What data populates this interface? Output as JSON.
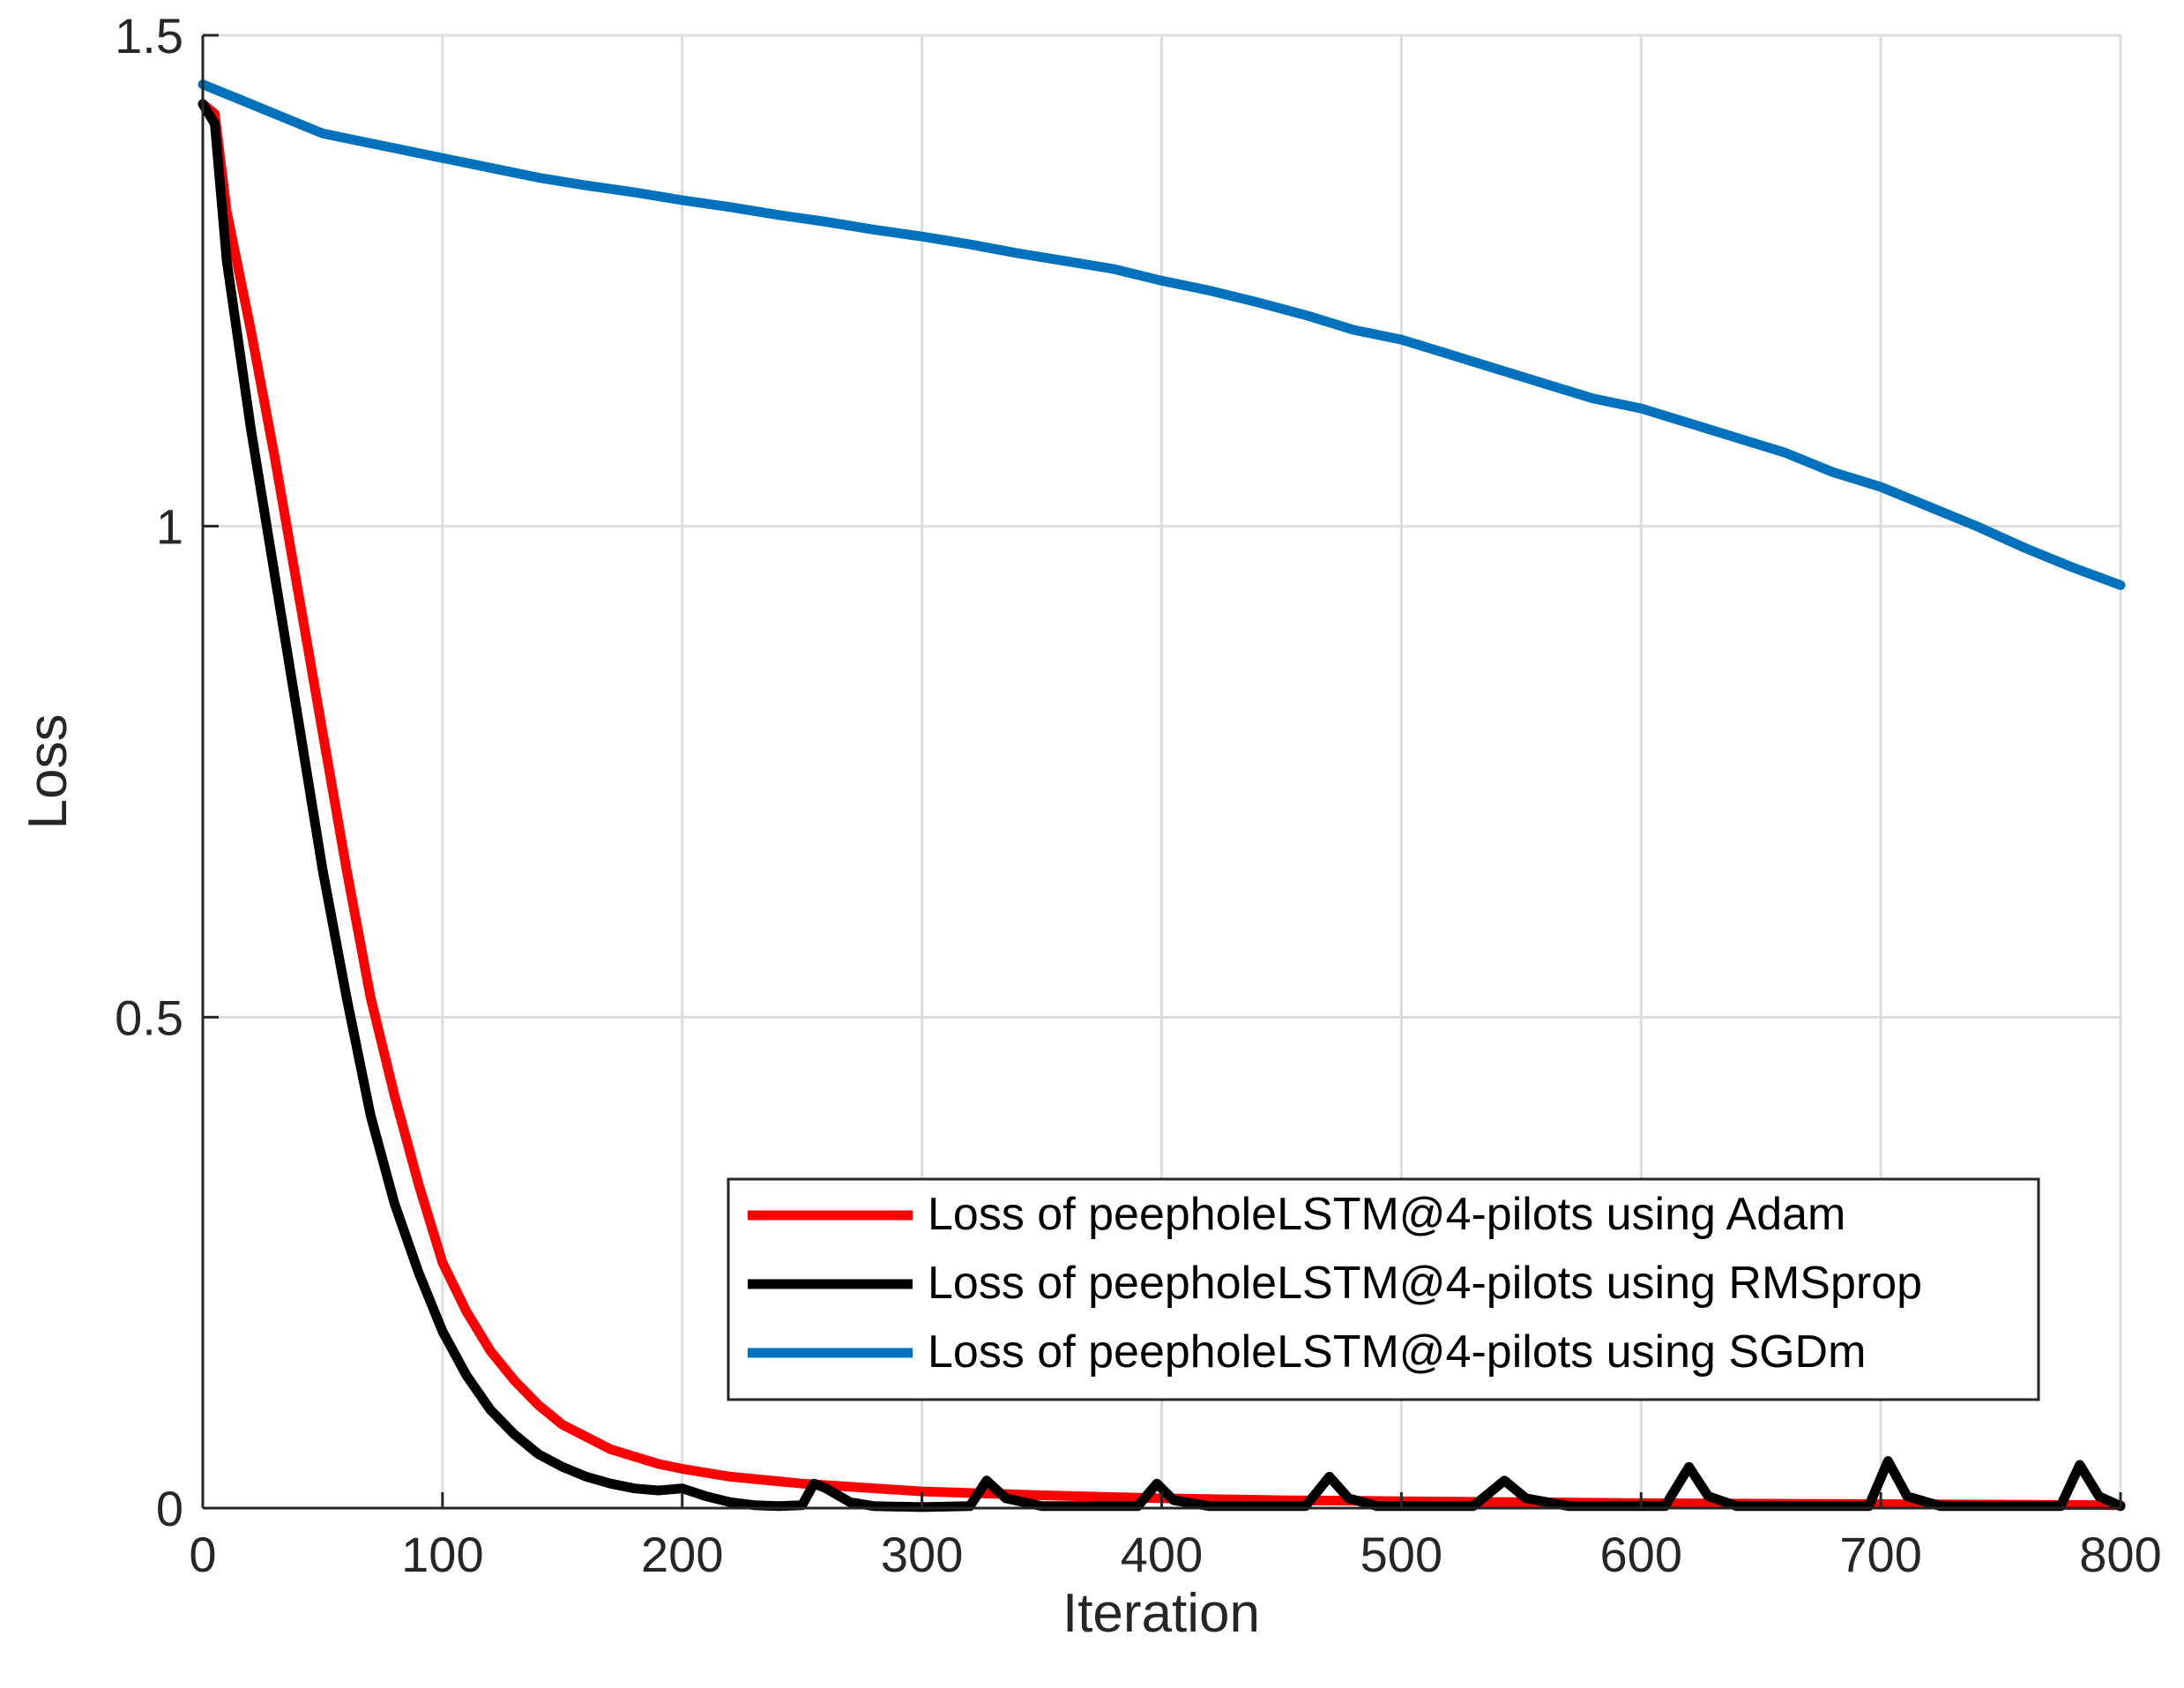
{
  "chart_data": {
    "type": "line",
    "title": "",
    "xlabel": "Iteration",
    "ylabel": "Loss",
    "xlim": [
      0,
      800
    ],
    "ylim": [
      0,
      1.5
    ],
    "xticks": [
      0,
      100,
      200,
      300,
      400,
      500,
      600,
      700,
      800
    ],
    "xtick_labels": [
      "0",
      "100",
      "200",
      "300",
      "400",
      "500",
      "600",
      "700",
      "800"
    ],
    "yticks": [
      0,
      0.5,
      1,
      1.5
    ],
    "ytick_labels": [
      "0",
      "0.5",
      "1",
      "1.5"
    ],
    "grid": true,
    "legend_position": "lower-right",
    "series": [
      {
        "name": "Loss of peepholeLSTM@4-pilots using Adam",
        "color": "#ff0000",
        "x": [
          0,
          5,
          10,
          20,
          30,
          40,
          50,
          60,
          70,
          80,
          90,
          100,
          110,
          120,
          130,
          140,
          150,
          170,
          190,
          200,
          220,
          250,
          300,
          350,
          400,
          450,
          500,
          600,
          700,
          800
        ],
        "y": [
          1.43,
          1.42,
          1.32,
          1.2,
          1.07,
          0.93,
          0.79,
          0.65,
          0.52,
          0.42,
          0.33,
          0.25,
          0.2,
          0.16,
          0.13,
          0.105,
          0.085,
          0.06,
          0.045,
          0.04,
          0.032,
          0.025,
          0.017,
          0.013,
          0.01,
          0.008,
          0.007,
          0.005,
          0.004,
          0.003
        ]
      },
      {
        "name": "Loss of peepholeLSTM@4-pilots using RMSprop",
        "color": "#000000",
        "x": [
          0,
          5,
          10,
          20,
          30,
          40,
          50,
          60,
          70,
          80,
          90,
          100,
          110,
          120,
          130,
          140,
          150,
          160,
          170,
          180,
          190,
          200,
          210,
          220,
          230,
          240,
          250,
          255,
          260,
          270,
          280,
          300,
          320,
          327,
          335,
          350,
          390,
          398,
          405,
          420,
          460,
          470,
          478,
          490,
          530,
          543,
          552,
          570,
          610,
          620,
          628,
          640,
          695,
          703,
          711,
          725,
          775,
          783,
          791,
          800
        ],
        "y": [
          1.43,
          1.41,
          1.27,
          1.1,
          0.95,
          0.8,
          0.65,
          0.52,
          0.4,
          0.31,
          0.24,
          0.18,
          0.135,
          0.1,
          0.075,
          0.055,
          0.042,
          0.032,
          0.025,
          0.02,
          0.018,
          0.02,
          0.012,
          0.006,
          0.003,
          0.002,
          0.003,
          0.025,
          0.02,
          0.006,
          0.002,
          0.001,
          0.002,
          0.028,
          0.01,
          0.002,
          0.002,
          0.025,
          0.008,
          0.002,
          0.002,
          0.032,
          0.01,
          0.002,
          0.002,
          0.028,
          0.01,
          0.002,
          0.002,
          0.042,
          0.012,
          0.002,
          0.002,
          0.048,
          0.012,
          0.002,
          0.002,
          0.044,
          0.012,
          0.002
        ]
      },
      {
        "name": "Loss of peepholeLSTM@4-pilots using SGDm",
        "color": "#0072bd",
        "x": [
          0,
          10,
          20,
          30,
          40,
          50,
          60,
          70,
          80,
          90,
          100,
          120,
          140,
          160,
          180,
          200,
          220,
          240,
          260,
          280,
          300,
          320,
          340,
          360,
          380,
          400,
          420,
          440,
          460,
          480,
          500,
          520,
          540,
          560,
          580,
          600,
          620,
          640,
          660,
          680,
          700,
          720,
          740,
          760,
          780,
          800
        ],
        "y": [
          1.45,
          1.44,
          1.43,
          1.42,
          1.41,
          1.4,
          1.395,
          1.39,
          1.385,
          1.38,
          1.375,
          1.365,
          1.355,
          1.347,
          1.34,
          1.332,
          1.325,
          1.317,
          1.31,
          1.302,
          1.295,
          1.287,
          1.278,
          1.27,
          1.262,
          1.25,
          1.24,
          1.228,
          1.215,
          1.2,
          1.19,
          1.175,
          1.16,
          1.145,
          1.13,
          1.12,
          1.105,
          1.09,
          1.075,
          1.055,
          1.04,
          1.02,
          1.0,
          0.978,
          0.958,
          0.94
        ]
      }
    ]
  }
}
